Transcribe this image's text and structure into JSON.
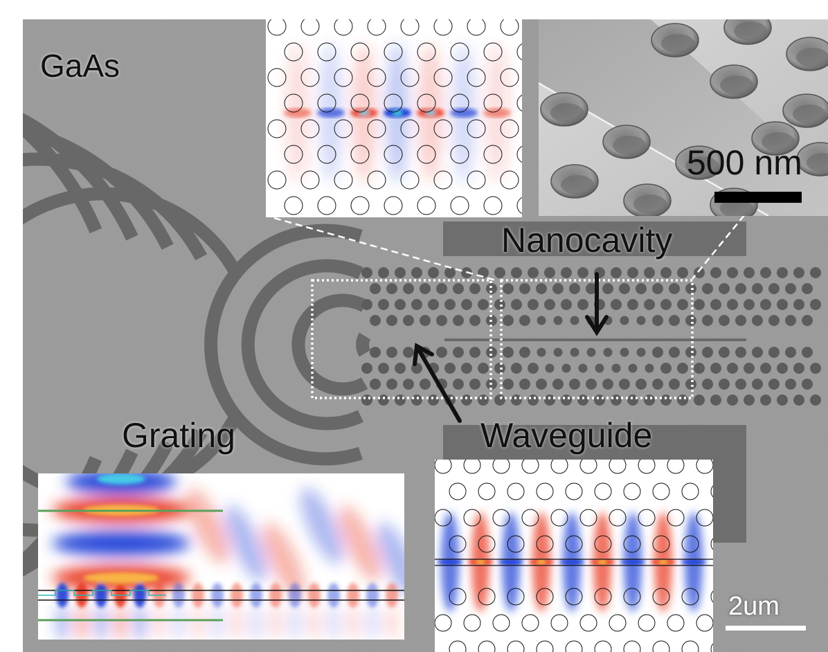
{
  "labels": {
    "material": "GaAs",
    "nanocavity": "Nanocavity",
    "waveguide": "Waveguide",
    "grating": "Grating",
    "scale_inset": "500 nm",
    "scale_main": "2um"
  },
  "colors": {
    "sem_background": "#9a9a9a",
    "etched_feature": "#686868",
    "field_positive": "#e8341c",
    "field_negative": "#1e3fd6",
    "field_peak": "#ffe14a",
    "cladding_line": "#5aa05a",
    "scale_bar": "#000000"
  }
}
